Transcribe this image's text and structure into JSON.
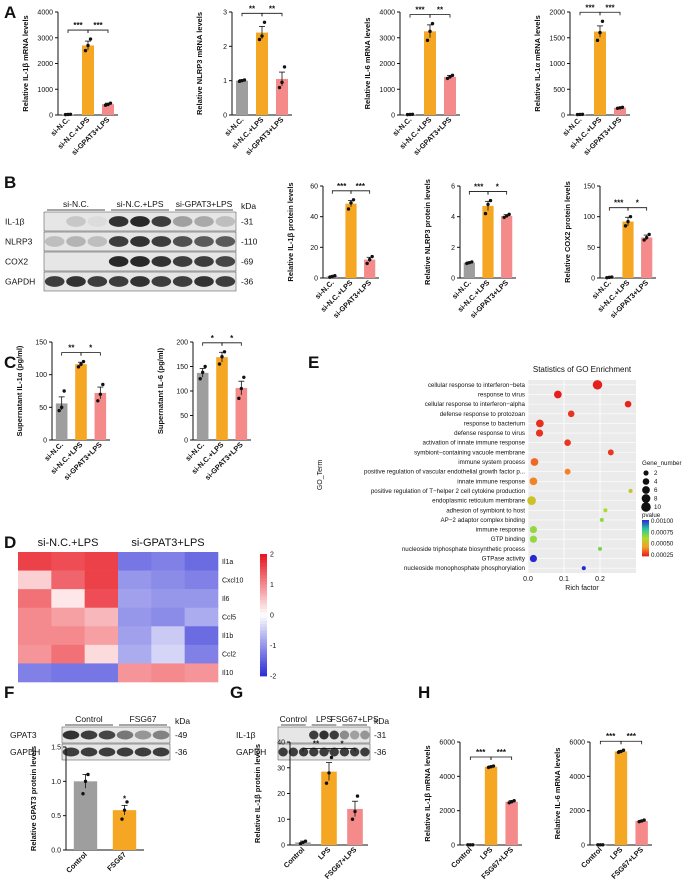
{
  "colors": {
    "gray": "#9e9e9e",
    "orange": "#f5a623",
    "pink": "#f48a8a",
    "blot_bg": "#e6e6e6",
    "band": "#1e1e1e",
    "heat_low": "#2c2cd6",
    "heat_mid": "#ffffff",
    "heat_high": "#e8121c"
  },
  "panel_letters": {
    "A": "A",
    "B": "B",
    "C": "C",
    "D": "D",
    "E": "E",
    "F": "F",
    "G": "G",
    "H": "H"
  },
  "blots": {
    "B": {
      "groups": [
        "si-N.C.",
        "si-N.C.+LPS",
        "si-GPAT3+LPS"
      ],
      "kda_label": "kDa",
      "rows": [
        {
          "label": "IL-1β",
          "kda": "31",
          "lanes": [
            0.0,
            0.15,
            0.05,
            0.9,
            0.95,
            0.85,
            0.35,
            0.3,
            0.2
          ]
        },
        {
          "label": "NLRP3",
          "kda": "110",
          "lanes": [
            0.2,
            0.25,
            0.2,
            0.85,
            0.9,
            0.85,
            0.75,
            0.7,
            0.7
          ]
        },
        {
          "label": "COX2",
          "kda": "69",
          "lanes": [
            0.0,
            0.0,
            0.0,
            0.95,
            0.95,
            0.9,
            0.85,
            0.85,
            0.8
          ]
        },
        {
          "label": "GAPDH",
          "kda": "36",
          "lanes": [
            0.85,
            0.9,
            0.85,
            0.85,
            0.9,
            0.85,
            0.85,
            0.9,
            0.85
          ]
        }
      ]
    },
    "F": {
      "groups": [
        "Control",
        "FSG67"
      ],
      "kda_label": "kDa",
      "rows": [
        {
          "label": "GPAT3",
          "kda": "49",
          "lanes": [
            0.9,
            0.85,
            0.8,
            0.55,
            0.4,
            0.5
          ]
        },
        {
          "label": "GAPDH",
          "kda": "36",
          "lanes": [
            0.85,
            0.85,
            0.85,
            0.85,
            0.85,
            0.85
          ]
        }
      ]
    },
    "G": {
      "groups": [
        "Control",
        "LPS",
        "FSG67+LPS"
      ],
      "kda_label": "kDa",
      "rows": [
        {
          "label": "IL-1β",
          "kda": "31",
          "lanes": [
            0.0,
            0.0,
            0.0,
            0.85,
            0.9,
            0.85,
            0.45,
            0.35,
            0.4
          ]
        },
        {
          "label": "GAPDH",
          "kda": "36",
          "lanes": [
            0.85,
            0.85,
            0.85,
            0.85,
            0.85,
            0.85,
            0.85,
            0.85,
            0.85
          ]
        }
      ]
    }
  },
  "chart_data": [
    {
      "id": "A1",
      "type": "bar",
      "categories": [
        "si-N.C.",
        "si-N.C.+LPS",
        "si-GPAT3+LPS"
      ],
      "values": [
        20,
        2700,
        420
      ],
      "errors": [
        10,
        170,
        40
      ],
      "points": [
        [
          15,
          20,
          25
        ],
        [
          2500,
          2700,
          2950
        ],
        [
          380,
          410,
          460
        ]
      ],
      "ylabel": "Relative IL-1β mRNA levels",
      "ylim": [
        0,
        4000
      ],
      "ticks": [
        0,
        1000,
        2000,
        3000,
        4000
      ],
      "sig": [
        {
          "from": 0,
          "to": 1,
          "label": "***"
        },
        {
          "from": 1,
          "to": 2,
          "label": "***"
        }
      ]
    },
    {
      "id": "A2",
      "type": "bar",
      "categories": [
        "si-N.C.",
        "si-N.C.+LPS",
        "si-GPAT3+LPS"
      ],
      "values": [
        1.0,
        2.4,
        1.05
      ],
      "errors": [
        0.03,
        0.18,
        0.2
      ],
      "points": [
        [
          0.98,
          1.0,
          1.02
        ],
        [
          2.2,
          2.3,
          2.7
        ],
        [
          0.8,
          0.95,
          1.4
        ]
      ],
      "ylabel": "Relative NLRP3 mRNA levels",
      "ylim": [
        0,
        3
      ],
      "ticks": [
        0,
        1,
        2,
        3
      ],
      "sig": [
        {
          "from": 0,
          "to": 1,
          "label": "**"
        },
        {
          "from": 1,
          "to": 2,
          "label": "**"
        }
      ]
    },
    {
      "id": "A3",
      "type": "bar",
      "categories": [
        "si-N.C.",
        "si-N.C.+LPS",
        "si-GPAT3+LPS"
      ],
      "values": [
        20,
        3250,
        1480
      ],
      "errors": [
        10,
        250,
        60
      ],
      "points": [
        [
          15,
          20,
          25
        ],
        [
          2900,
          3250,
          3550
        ],
        [
          1420,
          1480,
          1540
        ]
      ],
      "ylabel": "Relative IL-6 mRNA levels",
      "ylim": [
        0,
        4000
      ],
      "ticks": [
        0,
        1000,
        2000,
        3000,
        4000
      ],
      "sig": [
        {
          "from": 0,
          "to": 1,
          "label": "***"
        },
        {
          "from": 1,
          "to": 2,
          "label": "**"
        }
      ]
    },
    {
      "id": "A4",
      "type": "bar",
      "categories": [
        "si-N.C.",
        "si-N.C.+LPS",
        "si-GPAT3+LPS"
      ],
      "values": [
        10,
        1620,
        140
      ],
      "errors": [
        5,
        110,
        10
      ],
      "points": [
        [
          8,
          10,
          12
        ],
        [
          1450,
          1600,
          1820
        ],
        [
          130,
          140,
          150
        ]
      ],
      "ylabel": "Relative IL-1α mRNA levels",
      "ylim": [
        0,
        2000
      ],
      "ticks": [
        0,
        500,
        1000,
        1500,
        2000
      ],
      "sig": [
        {
          "from": 0,
          "to": 1,
          "label": "***"
        },
        {
          "from": 1,
          "to": 2,
          "label": "***"
        }
      ]
    },
    {
      "id": "B1",
      "type": "bar",
      "categories": [
        "si-N.C.",
        "si-N.C.+LPS",
        "si-GPAT3+LPS"
      ],
      "values": [
        1,
        48.5,
        12
      ],
      "errors": [
        0.5,
        2,
        1.5
      ],
      "points": [
        [
          0.5,
          1,
          1.5
        ],
        [
          45,
          49,
          51
        ],
        [
          9.5,
          12,
          14
        ]
      ],
      "ylabel": "Relative IL-1β protein levels",
      "ylim": [
        0,
        60
      ],
      "ticks": [
        0,
        20,
        40,
        60
      ],
      "sig": [
        {
          "from": 0,
          "to": 1,
          "label": "***"
        },
        {
          "from": 1,
          "to": 2,
          "label": "***"
        }
      ]
    },
    {
      "id": "B2",
      "type": "bar",
      "categories": [
        "si-N.C.",
        "si-N.C.+LPS",
        "si-GPAT3+LPS"
      ],
      "values": [
        1.0,
        4.7,
        4.05
      ],
      "errors": [
        0.05,
        0.3,
        0.08
      ],
      "points": [
        [
          0.95,
          1.0,
          1.05
        ],
        [
          4.2,
          4.8,
          5.05
        ],
        [
          3.95,
          4.05,
          4.15
        ]
      ],
      "ylabel": "Relative NLRP3 protein levels",
      "ylim": [
        0,
        6
      ],
      "ticks": [
        0,
        2,
        4,
        6
      ],
      "sig": [
        {
          "from": 0,
          "to": 1,
          "label": "***"
        },
        {
          "from": 1,
          "to": 2,
          "label": "*"
        }
      ]
    },
    {
      "id": "B3",
      "type": "bar",
      "categories": [
        "si-N.C.",
        "si-N.C.+LPS",
        "si-GPAT3+LPS"
      ],
      "values": [
        1,
        92,
        66
      ],
      "errors": [
        0.5,
        7,
        4
      ],
      "points": [
        [
          0.5,
          1,
          1.5
        ],
        [
          85,
          92,
          100
        ],
        [
          62,
          66,
          71
        ]
      ],
      "ylabel": "Relative COX2 protein levels",
      "ylim": [
        0,
        150
      ],
      "ticks": [
        0,
        50,
        100,
        150
      ],
      "sig": [
        {
          "from": 0,
          "to": 1,
          "label": "***"
        },
        {
          "from": 1,
          "to": 2,
          "label": "*"
        }
      ]
    },
    {
      "id": "C1",
      "type": "bar",
      "categories": [
        "si-N.C.",
        "si-N.C.+LPS",
        "si-GPAT3+LPS"
      ],
      "values": [
        56,
        116,
        72
      ],
      "errors": [
        10,
        3,
        9
      ],
      "points": [
        [
          45,
          50,
          75
        ],
        [
          112,
          116,
          120
        ],
        [
          60,
          70,
          85
        ]
      ],
      "ylabel": "Supernatant IL-1α (pg/ml)",
      "ylim": [
        0,
        150
      ],
      "ticks": [
        0,
        50,
        100,
        150
      ],
      "sig": [
        {
          "from": 0,
          "to": 1,
          "label": "**"
        },
        {
          "from": 1,
          "to": 2,
          "label": "*"
        }
      ]
    },
    {
      "id": "C2",
      "type": "bar",
      "categories": [
        "si-N.C.",
        "si-N.C.+LPS",
        "si-GPAT3+LPS"
      ],
      "values": [
        137,
        169,
        106
      ],
      "errors": [
        9,
        10,
        14
      ],
      "points": [
        [
          125,
          138,
          150
        ],
        [
          155,
          170,
          180
        ],
        [
          85,
          105,
          128
        ]
      ],
      "ylabel": "Supernatant IL-6 (pg/ml)",
      "ylim": [
        0,
        200
      ],
      "ticks": [
        0,
        50,
        100,
        150,
        200
      ],
      "sig": [
        {
          "from": 0,
          "to": 1,
          "label": "*"
        },
        {
          "from": 1,
          "to": 2,
          "label": "*"
        }
      ]
    },
    {
      "id": "D",
      "type": "heatmap",
      "groups": [
        "si-N.C.+LPS",
        "si-GPAT3+LPS"
      ],
      "rows": [
        "Il1a",
        "Cxcl10",
        "Il6",
        "Ccl5",
        "Il1b",
        "Ccl2",
        "Il10"
      ],
      "values": [
        [
          1.6,
          1.5,
          1.6,
          -1.3,
          -1.2,
          -1.4
        ],
        [
          0.4,
          1.3,
          1.6,
          -1.0,
          -1.1,
          -1.2
        ],
        [
          1.2,
          0.2,
          1.5,
          -0.9,
          -1.0,
          -1.0
        ],
        [
          1.0,
          0.8,
          0.6,
          -1.0,
          -1.1,
          -0.8
        ],
        [
          1.0,
          1.0,
          0.8,
          -0.9,
          -0.5,
          -1.4
        ],
        [
          0.9,
          1.2,
          0.3,
          -0.8,
          -0.4,
          -1.2
        ],
        [
          -1.2,
          -1.3,
          -1.3,
          0.9,
          1.0,
          0.9
        ]
      ],
      "scale_ticks": [
        "2",
        "1",
        "0",
        "-1",
        "-2"
      ],
      "vrange": [
        -2,
        2
      ]
    },
    {
      "id": "E",
      "type": "scatter",
      "title": "Statistics of GO Enrichment",
      "xlabel": "Rich factor",
      "ylabel": "GO_Term",
      "xlim": [
        0,
        0.3
      ],
      "xticks": [
        "0.0",
        "0.1",
        "0.2"
      ],
      "terms": [
        {
          "term": "cellular response to interferon−beta",
          "rich": 0.193,
          "count": 10,
          "pvalue": 1e-05
        },
        {
          "term": "response to virus",
          "rich": 0.083,
          "count": 6,
          "pvalue": 1e-05
        },
        {
          "term": "cellular response to interferon−alpha",
          "rich": 0.278,
          "count": 4,
          "pvalue": 2e-05
        },
        {
          "term": "defense response to protozoan",
          "rich": 0.12,
          "count": 4,
          "pvalue": 5e-05
        },
        {
          "term": "response to bacterium",
          "rich": 0.033,
          "count": 6,
          "pvalue": 4e-05
        },
        {
          "term": "defense response to virus",
          "rich": 0.032,
          "count": 5,
          "pvalue": 5e-05
        },
        {
          "term": "activation of innate immune response",
          "rich": 0.11,
          "count": 4,
          "pvalue": 6e-05
        },
        {
          "term": "symbiont−containing vacuole membrane",
          "rich": 0.23,
          "count": 3,
          "pvalue": 6e-05
        },
        {
          "term": "immune system process",
          "rich": 0.018,
          "count": 6,
          "pvalue": 0.00015
        },
        {
          "term": "positive regulation of vascular endothelial growth factor p...",
          "rich": 0.11,
          "count": 3,
          "pvalue": 0.0002
        },
        {
          "term": "innate immune response",
          "rich": 0.015,
          "count": 6,
          "pvalue": 0.0002
        },
        {
          "term": "positive regulation of T−helper 2 cell cytokine production",
          "rich": 0.285,
          "count": 1,
          "pvalue": 0.0004
        },
        {
          "term": "endoplasmic reticulum membrane",
          "rich": 0.01,
          "count": 8,
          "pvalue": 0.0004
        },
        {
          "term": "adhesion of symbiont to host",
          "rich": 0.215,
          "count": 1,
          "pvalue": 0.0005
        },
        {
          "term": "AP−2 adaptor complex binding",
          "rich": 0.205,
          "count": 1,
          "pvalue": 0.00055
        },
        {
          "term": "immune response",
          "rich": 0.015,
          "count": 5,
          "pvalue": 0.00055
        },
        {
          "term": "GTP binding",
          "rich": 0.015,
          "count": 5,
          "pvalue": 0.00055
        },
        {
          "term": "nucleoside triphosphate biosynthetic process",
          "rich": 0.2,
          "count": 1,
          "pvalue": 0.0006
        },
        {
          "term": "GTPase activity",
          "rich": 0.015,
          "count": 5,
          "pvalue": 0.001
        },
        {
          "term": "nucleoside monophosphate phosphorylation",
          "rich": 0.155,
          "count": 1,
          "pvalue": 0.001
        }
      ],
      "legend": {
        "size_title": "Gene_number",
        "size_values": [
          2,
          4,
          6,
          8,
          10
        ],
        "size_labels": [
          "2",
          "4",
          "6",
          "8",
          "10"
        ],
        "color_title": "pvalue",
        "color_ticks": [
          "0.00100",
          "0.00075",
          "0.00050",
          "0.00025"
        ]
      }
    },
    {
      "id": "F1",
      "type": "bar",
      "categories": [
        "Control",
        "FSG67"
      ],
      "values": [
        1.0,
        0.58
      ],
      "errors": [
        0.1,
        0.07
      ],
      "points": [
        [
          0.82,
          1.0,
          1.1
        ],
        [
          0.45,
          0.58,
          0.7
        ]
      ],
      "ylabel": "Relative GPAT3 protein levels",
      "ylim": [
        0,
        1.5
      ],
      "ticks": [
        0,
        0.5,
        1.0,
        1.5
      ],
      "ticklabels": [
        "0.0",
        "0.5",
        "1.0",
        "1.5"
      ],
      "sig": [
        {
          "on": 1,
          "label": "*"
        }
      ]
    },
    {
      "id": "G1",
      "type": "bar",
      "categories": [
        "Control",
        "LPS",
        "FSG67+LPS"
      ],
      "values": [
        1,
        28.5,
        14
      ],
      "errors": [
        0.5,
        3.5,
        3
      ],
      "points": [
        [
          0.5,
          1,
          1.5
        ],
        [
          24,
          28,
          34
        ],
        [
          10,
          13,
          19
        ]
      ],
      "ylabel": "Relative IL-1β protein levels",
      "ylim": [
        0,
        40
      ],
      "ticks": [
        0,
        10,
        20,
        30,
        40
      ],
      "sig": [
        {
          "from": 0,
          "to": 1,
          "label": "**"
        },
        {
          "from": 1,
          "to": 2,
          "label": "*"
        }
      ]
    },
    {
      "id": "H1",
      "type": "bar",
      "categories": [
        "Control",
        "LPS",
        "FSG67+LPS"
      ],
      "values": [
        10,
        4560,
        2520
      ],
      "errors": [
        5,
        40,
        60
      ],
      "points": [
        [
          8,
          10,
          12
        ],
        [
          4520,
          4560,
          4600
        ],
        [
          2460,
          2520,
          2580
        ]
      ],
      "ylabel": "Relative IL-1β mRNA levels",
      "ylim": [
        0,
        6000
      ],
      "ticks": [
        0,
        2000,
        4000,
        6000
      ],
      "sig": [
        {
          "from": 0,
          "to": 1,
          "label": "***"
        },
        {
          "from": 1,
          "to": 2,
          "label": "***"
        }
      ]
    },
    {
      "id": "H2",
      "type": "bar",
      "categories": [
        "Control",
        "LPS",
        "FSG67+LPS"
      ],
      "values": [
        10,
        5450,
        1400
      ],
      "errors": [
        5,
        60,
        40
      ],
      "points": [
        [
          8,
          10,
          12
        ],
        [
          5400,
          5450,
          5520
        ],
        [
          1360,
          1400,
          1450
        ]
      ],
      "ylabel": "Relative IL-6 mRNA levels",
      "ylim": [
        0,
        6000
      ],
      "ticks": [
        0,
        2000,
        4000,
        6000
      ],
      "sig": [
        {
          "from": 0,
          "to": 1,
          "label": "***"
        },
        {
          "from": 1,
          "to": 2,
          "label": "***"
        }
      ]
    }
  ]
}
